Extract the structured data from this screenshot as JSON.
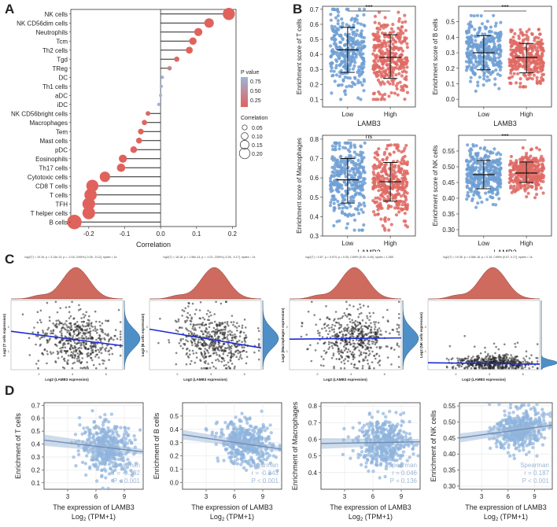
{
  "panels": {
    "A": "A",
    "B": "B",
    "C": "C",
    "D": "D"
  },
  "chart_data": [
    {
      "id": "A",
      "type": "lollipop",
      "title": "",
      "xlabel": "Correlation",
      "xlim": [
        -0.25,
        0.21
      ],
      "xticks": [
        -0.2,
        -0.1,
        0.0,
        0.1,
        0.2
      ],
      "xtick_labels": [
        "-0.2",
        "-0.1",
        "0.0",
        "0.1",
        "0.2"
      ],
      "categories": [
        "NK cells",
        "NK CD56dim cells",
        "Neutrophils",
        "Tcm",
        "Th2 cells",
        "Tgd",
        "TReg",
        "DC",
        "Th1 cells",
        "aDC",
        "iDC",
        "NK CD56bright cells",
        "Macrophages",
        "Tem",
        "Mast cells",
        "pDC",
        "Eosinophils",
        "Th17 cells",
        "Cytotoxic cells",
        "CD8 T cells",
        "T cells",
        "TFH",
        "T helper cells",
        "B cells"
      ],
      "values": [
        0.19,
        0.135,
        0.105,
        0.09,
        0.08,
        0.045,
        0.025,
        0.005,
        0.002,
        0.0,
        -0.005,
        -0.035,
        -0.045,
        -0.055,
        -0.06,
        -0.075,
        -0.105,
        -0.11,
        -0.155,
        -0.19,
        -0.195,
        -0.2,
        -0.2,
        -0.24
      ],
      "p_values": [
        0.0,
        0.0,
        0.0,
        0.001,
        0.001,
        0.05,
        0.3,
        0.85,
        0.9,
        0.95,
        0.8,
        0.1,
        0.05,
        0.02,
        0.02,
        0.01,
        0.0,
        0.0,
        0.0,
        0.0,
        0.0,
        0.0,
        0.0,
        0.0
      ],
      "legend": {
        "p_title": "P value",
        "p_ticks": [
          "0.75",
          "0.50",
          "0.25"
        ],
        "size_title": "Correlation",
        "size_ticks": [
          "0.05",
          "0.10",
          "0.15",
          "0.20"
        ]
      },
      "colors": {
        "high_p": "#9eb4d8",
        "low_p": "#e0625c"
      }
    },
    {
      "id": "B",
      "type": "boxscatter",
      "xlabel": "LAMB3",
      "groups": [
        "Low",
        "High"
      ],
      "colors": {
        "Low": "#6f9fd3",
        "High": "#df6a64"
      },
      "plots": [
        {
          "ylabel": "Enrichment score of T cells",
          "ylim": [
            0.05,
            0.72
          ],
          "yticks": [
            "0.1",
            "0.2",
            "0.3",
            "0.4",
            "0.5",
            "0.6",
            "0.7"
          ],
          "ytick_vals": [
            0.1,
            0.2,
            0.3,
            0.4,
            0.5,
            0.6,
            0.7
          ],
          "sig": "***",
          "stats": {
            "Low": {
              "mean": 0.43,
              "lo": 0.28,
              "hi": 0.58,
              "min": 0.1,
              "max": 0.7
            },
            "High": {
              "mean": 0.38,
              "lo": 0.24,
              "hi": 0.53,
              "min": 0.1,
              "max": 0.68
            }
          }
        },
        {
          "ylabel": "Enrichment score of B cells",
          "ylim": [
            -0.05,
            0.6
          ],
          "yticks": [
            "0.0",
            "0.1",
            "0.2",
            "0.3",
            "0.4",
            "0.5"
          ],
          "ytick_vals": [
            0.0,
            0.1,
            0.2,
            0.3,
            0.4,
            0.5
          ],
          "sig": "***",
          "stats": {
            "Low": {
              "mean": 0.3,
              "lo": 0.19,
              "hi": 0.41,
              "min": -0.03,
              "max": 0.54
            },
            "High": {
              "mean": 0.27,
              "lo": 0.17,
              "hi": 0.36,
              "min": 0.08,
              "max": 0.45
            }
          }
        },
        {
          "ylabel": "Enrichment score of Macrophages",
          "ylim": [
            0.3,
            0.82
          ],
          "yticks": [
            "0.3",
            "0.4",
            "0.5",
            "0.6",
            "0.7",
            "0.8"
          ],
          "ytick_vals": [
            0.3,
            0.4,
            0.5,
            0.6,
            0.7,
            0.8
          ],
          "sig": "ns",
          "stats": {
            "Low": {
              "mean": 0.59,
              "lo": 0.47,
              "hi": 0.7,
              "min": 0.33,
              "max": 0.78
            },
            "High": {
              "mean": 0.58,
              "lo": 0.48,
              "hi": 0.68,
              "min": 0.33,
              "max": 0.77
            }
          }
        },
        {
          "ylabel": "Enrichment score of NK cells",
          "ylim": [
            0.28,
            0.6
          ],
          "yticks": [
            "0.30",
            "0.35",
            "0.40",
            "0.45",
            "0.50",
            "0.55"
          ],
          "ytick_vals": [
            0.3,
            0.35,
            0.4,
            0.45,
            0.5,
            0.55
          ],
          "sig": "***",
          "stats": {
            "Low": {
              "mean": 0.475,
              "lo": 0.43,
              "hi": 0.52,
              "min": 0.31,
              "max": 0.57
            },
            "High": {
              "mean": 0.48,
              "lo": 0.45,
              "hi": 0.515,
              "min": 0.38,
              "max": 0.56
            }
          }
        }
      ]
    },
    {
      "id": "C",
      "type": "scatter_marginal",
      "plots": [
        {
          "xlabel": "Log2 (LAMB3 expression)",
          "ylabel": "Log2 (T cells expression)",
          "subtitle": "log2(T) = 19.16, p = 3.14e-13, ρ = -0.18, CI95% [-0.26, -0.12], npairs = 1k",
          "slope": -0.35,
          "x_ticks": [
            "2",
            "4",
            "6"
          ],
          "y_ticks": [
            "1",
            "2"
          ],
          "spread": 0.55,
          "flat": false
        },
        {
          "xlabel": "Log2 (LAMB3 expression)",
          "ylabel": "Log2 (B cells expression)",
          "subtitle": "log2(T) = 18.18, p = 1.96e-14, ρ = -0.21, CI95% [-0.26, -0.17], npairs = 1k",
          "slope": -0.45,
          "x_ticks": [
            "2",
            "4",
            "6"
          ],
          "y_ticks": [
            "1",
            "2"
          ],
          "spread": 0.55,
          "flat": false
        },
        {
          "xlabel": "Log2 (LAMB3 expression)",
          "ylabel": "Log2 (Macrophages expression)",
          "subtitle": "log2(T) = 0.87, p = 0.074, ρ = 0.05, CI95% [0.00, 0.09], npairs = 1,058",
          "slope": 0.03,
          "x_ticks": [
            "2",
            "4",
            "6"
          ],
          "y_ticks": [
            "1",
            "2"
          ],
          "spread": 0.55,
          "flat": false
        },
        {
          "xlabel": "Log2 (LAMB3 expression)",
          "ylabel": "Log2 (NK cells expression)",
          "subtitle": "log2(T) = 19.38, p = 4.58e-16, ρ = 0.15, CI95% [0.07, 0.17], npairs = 1k",
          "slope": -0.05,
          "x_ticks": [
            "2",
            "4",
            "6"
          ],
          "y_ticks": [
            "1",
            "2"
          ],
          "spread": 0.15,
          "flat": true
        }
      ]
    },
    {
      "id": "D",
      "type": "scatter",
      "xlabel_line1": "The expression of LAMB3",
      "xlabel_line2_a": "Log",
      "xlabel_line2_sub": "2",
      "xlabel_line2_b": " (TPM+1)",
      "xticks": [
        "3",
        "6",
        "9"
      ],
      "xtick_vals": [
        3,
        6,
        9
      ],
      "xlim": [
        0.5,
        11
      ],
      "plots": [
        {
          "ylabel": "Enrichment of T cells",
          "ylim": [
            0.05,
            0.72
          ],
          "yticks": [
            "0.1",
            "0.2",
            "0.3",
            "0.4",
            "0.5",
            "0.6",
            "0.7"
          ],
          "ytick_vals": [
            0.1,
            0.2,
            0.3,
            0.4,
            0.5,
            0.6,
            0.7
          ],
          "method": "Spearman",
          "r": "r = -0.192",
          "p": "P < 0.001",
          "fit": [
            [
              0.5,
              0.43
            ],
            [
              11,
              0.34
            ]
          ],
          "center": 0.38,
          "spread": 0.12
        },
        {
          "ylabel": "Enrichment of B cells",
          "ylim": [
            -0.05,
            0.6
          ],
          "yticks": [
            "0.0",
            "0.1",
            "0.2",
            "0.3",
            "0.4",
            "0.5"
          ],
          "ytick_vals": [
            0.0,
            0.1,
            0.2,
            0.3,
            0.4,
            0.5
          ],
          "method": "Spearman",
          "r": "r = -0.243",
          "p": "P < 0.001",
          "fit": [
            [
              0.5,
              0.36
            ],
            [
              11,
              0.25
            ]
          ],
          "center": 0.28,
          "spread": 0.1
        },
        {
          "ylabel": "Enrichment of Macrophages",
          "ylim": [
            0.3,
            0.82
          ],
          "yticks": [
            "0.4",
            "0.5",
            "0.6",
            "0.7",
            "0.8"
          ],
          "ytick_vals": [
            0.4,
            0.5,
            0.6,
            0.7,
            0.8
          ],
          "method": "Spearman",
          "r": "r = 0.046",
          "p": "P = 0.136",
          "fit": [
            [
              0.5,
              0.575
            ],
            [
              11,
              0.585
            ]
          ],
          "center": 0.58,
          "spread": 0.09
        },
        {
          "ylabel": "Enrichment of NK cells",
          "ylim": [
            0.29,
            0.56
          ],
          "yticks": [
            "0.30",
            "0.35",
            "0.40",
            "0.45",
            "0.50",
            "0.55"
          ],
          "ytick_vals": [
            0.3,
            0.35,
            0.4,
            0.45,
            0.5,
            0.55
          ],
          "method": "Spearman",
          "r": "r = 0.187",
          "p": "P < 0.001",
          "fit": [
            [
              0.5,
              0.45
            ],
            [
              11,
              0.49
            ]
          ],
          "center": 0.47,
          "spread": 0.04
        }
      ]
    }
  ]
}
